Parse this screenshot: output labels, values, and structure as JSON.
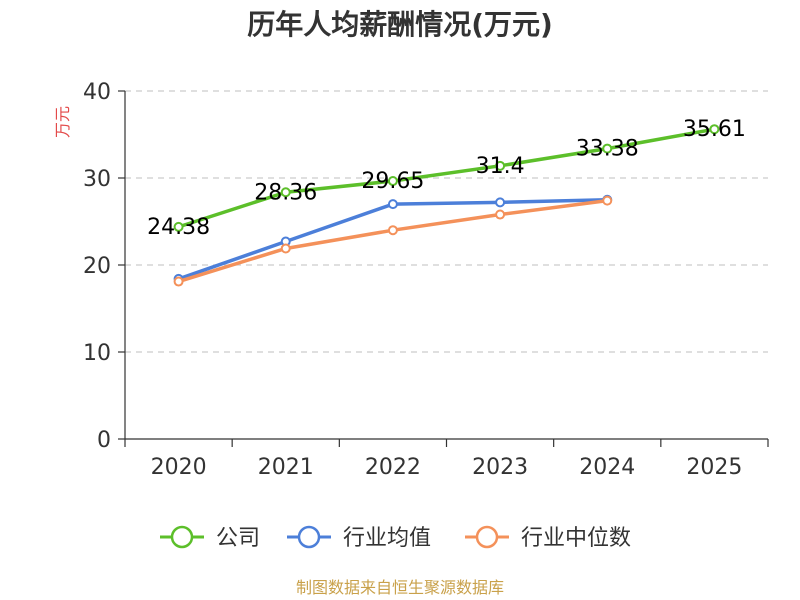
{
  "chart_data": {
    "type": "line",
    "title": "历年人均薪酬情况(万元)",
    "ylabel": "万元",
    "xlabel": "",
    "categories": [
      "2020",
      "2021",
      "2022",
      "2023",
      "2024",
      "2025"
    ],
    "ylim": [
      0,
      40
    ],
    "yticks": [
      0,
      10,
      20,
      30,
      40
    ],
    "grid": true,
    "legend": "bottom",
    "series": [
      {
        "name": "公司",
        "color": "#5cbf2a",
        "values": [
          24.38,
          28.36,
          29.65,
          31.4,
          33.38,
          35.61
        ],
        "labels": [
          "24.38",
          "28.36",
          "29.65",
          "31.4",
          "33.38",
          "35.61"
        ]
      },
      {
        "name": "行业均值",
        "color": "#4c7fd9",
        "values": [
          18.4,
          22.7,
          27.0,
          27.2,
          27.5,
          null
        ]
      },
      {
        "name": "行业中位数",
        "color": "#f4915a",
        "values": [
          18.1,
          21.9,
          24.0,
          25.8,
          27.4,
          null
        ]
      }
    ]
  },
  "source": "制图数据来自恒生聚源数据库"
}
